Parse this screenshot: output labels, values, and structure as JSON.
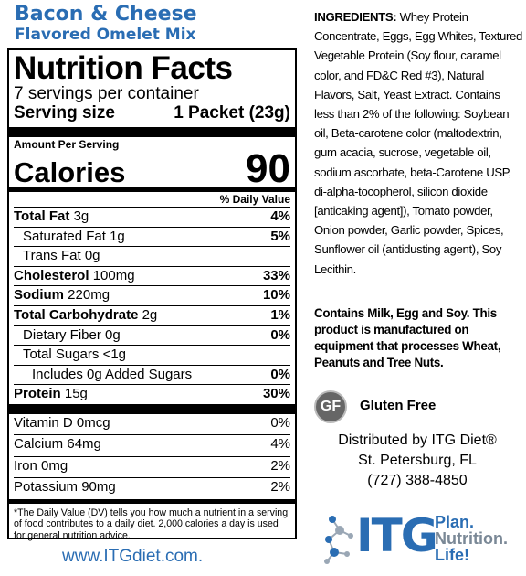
{
  "product": {
    "line1": "Bacon & Cheese",
    "line2": "Flavored Omelet Mix"
  },
  "nutrition": {
    "title": "Nutrition Facts",
    "servings": "7 servings per container",
    "serving_size_label": "Serving size",
    "serving_size_value": "1 Packet (23g)",
    "amount_per_serving": "Amount Per Serving",
    "calories_label": "Calories",
    "calories_value": "90",
    "daily_value_header": "% Daily Value",
    "nutrients": [
      {
        "name": "Total Fat",
        "amount": "3g",
        "dv": "4%"
      },
      {
        "name": "Saturated Fat",
        "amount": "1g",
        "dv": "5%"
      },
      {
        "name": "Trans Fat",
        "amount": "0g",
        "dv": ""
      },
      {
        "name": "Cholesterol",
        "amount": "100mg",
        "dv": "33%"
      },
      {
        "name": "Sodium",
        "amount": "220mg",
        "dv": "10%"
      },
      {
        "name": "Total Carbohydrate",
        "amount": "2g",
        "dv": "1%"
      },
      {
        "name": "Dietary Fiber",
        "amount": "0g",
        "dv": "0%"
      },
      {
        "name": "Total Sugars",
        "amount": "<1g",
        "dv": ""
      },
      {
        "name": "Includes 0g Added Sugars",
        "amount": "",
        "dv": "0%"
      },
      {
        "name": "Protein",
        "amount": "15g",
        "dv": "30%"
      }
    ],
    "vitamins": [
      {
        "name": "Vitamin D",
        "amount": "0mcg",
        "dv": "0%"
      },
      {
        "name": "Calcium",
        "amount": "64mg",
        "dv": "4%"
      },
      {
        "name": "Iron",
        "amount": "0mg",
        "dv": "2%"
      },
      {
        "name": "Potassium",
        "amount": "90mg",
        "dv": "2%"
      }
    ],
    "footnote": "*The Daily Value (DV) tells you how much a nutrient in a serving of food contributes to a daily diet. 2,000 calories a day is used for general nutrition advice."
  },
  "website": "www.ITGdiet.com.",
  "ingredients": {
    "label": "INGREDIENTS:",
    "text": "Whey Protein Concentrate, Eggs, Egg Whites, Textured Vegetable Protein (Soy flour, caramel color, and FD&C Red #3), Natural Flavors, Salt, Yeast Extract. Contains less than 2% of the following: Soybean oil, Beta-carotene color (maltodextrin, gum acacia, sucrose, vegetable oil, sodium ascorbate, beta-Carotene USP, di-alpha-tocopherol, silicon dioxide [anticaking agent]), Tomato powder, Onion powder, Garlic powder, Spices, Sunflower oil (antidusting agent), Soy Lecithin."
  },
  "allergen": "Contains Milk, Egg and Soy. This product is manufactured on equipment that processes Wheat, Peanuts and Tree Nuts.",
  "gluten_free": {
    "badge": "GF",
    "label": "Gluten Free"
  },
  "distributor": {
    "line1": "Distributed by ITG Diet®",
    "line2": "St. Petersburg, FL",
    "phone": "(727) 388-4850"
  },
  "logo": {
    "brand": "ITG",
    "tagline": [
      "Plan.",
      "Nutrition.",
      "Life!"
    ],
    "color": "#2a6db3"
  }
}
